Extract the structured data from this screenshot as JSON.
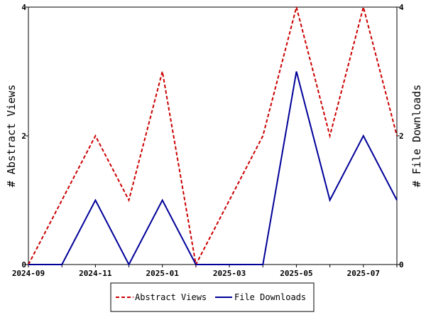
{
  "chart_data": {
    "type": "line",
    "x_tick_labels": [
      "2024-09",
      "2024-11",
      "2025-01",
      "2025-03",
      "2025-05",
      "2025-07"
    ],
    "x": [
      "2024-09",
      "2024-10",
      "2024-11",
      "2024-12",
      "2025-01",
      "2025-02",
      "2025-03",
      "2025-04",
      "2025-05",
      "2025-06",
      "2025-07",
      "2025-08"
    ],
    "series": [
      {
        "name": "Abstract Views",
        "axis": "left",
        "color": "#cc0000",
        "dash": "dashed",
        "values": [
          0,
          1,
          2,
          1,
          3,
          0,
          1,
          2,
          4,
          2,
          4,
          2
        ]
      },
      {
        "name": "File Downloads",
        "axis": "right",
        "color": "#000099",
        "dash": "solid",
        "values": [
          0,
          0,
          1,
          0,
          1,
          0,
          0,
          0,
          3,
          1,
          2,
          1
        ]
      }
    ],
    "ylabel_left": "# Abstract Views",
    "ylabel_right": "# File Downloads",
    "ylim": [
      0,
      4
    ],
    "y_tick_labels": [
      "0",
      "2",
      "4"
    ],
    "legend_position": "bottom-center",
    "grid": false
  }
}
